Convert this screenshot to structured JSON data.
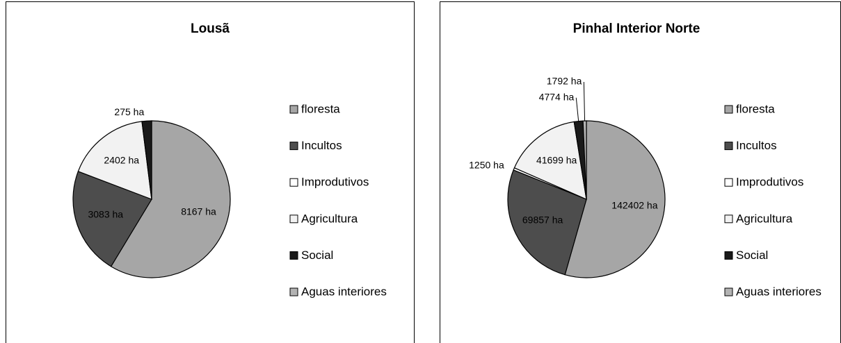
{
  "chart_data": [
    {
      "type": "pie",
      "title": "Lousã",
      "categories": [
        "floresta",
        "Incultos",
        "Improdutivos",
        "Agricultura",
        "Social",
        "Aguas interiores"
      ],
      "values": [
        8167,
        3083,
        null,
        2402,
        275,
        null
      ],
      "value_labels": [
        "8167 ha",
        "3083 ha",
        null,
        "2402 ha",
        "275 ha",
        null
      ],
      "colors": [
        "#a6a6a6",
        "#4d4d4d",
        "#ffffff",
        "#f2f2f2",
        "#1a1a1a",
        "#b3b3b3"
      ]
    },
    {
      "type": "pie",
      "title": "Pinhal Interior Norte",
      "categories": [
        "floresta",
        "Incultos",
        "Improdutivos",
        "Agricultura",
        "Social",
        "Aguas interiores"
      ],
      "values": [
        142402,
        69857,
        1250,
        41699,
        4774,
        1792
      ],
      "value_labels": [
        "142402 ha",
        "69857 ha",
        "1250 ha",
        "41699 ha",
        "4774 ha",
        "1792 ha"
      ],
      "colors": [
        "#a6a6a6",
        "#4d4d4d",
        "#ffffff",
        "#f2f2f2",
        "#1a1a1a",
        "#b3b3b3"
      ]
    }
  ]
}
